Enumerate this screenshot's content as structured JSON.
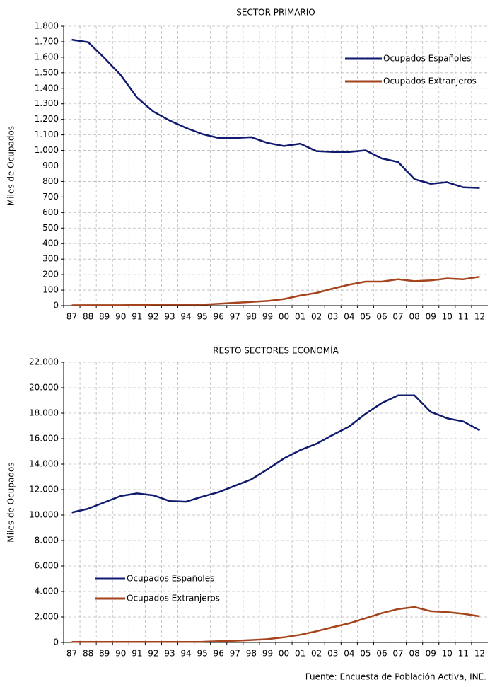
{
  "chart_data": [
    {
      "type": "line",
      "title": "SECTOR PRIMARIO",
      "y_label": "Miles de Ocupados",
      "categories": [
        "87",
        "88",
        "89",
        "90",
        "91",
        "92",
        "93",
        "94",
        "95",
        "96",
        "97",
        "98",
        "99",
        "00",
        "01",
        "02",
        "03",
        "04",
        "05",
        "06",
        "07",
        "08",
        "09",
        "10",
        "11",
        "12"
      ],
      "series": [
        {
          "name": "Ocupados Españoles",
          "color": "#101a6e",
          "values": [
            1713,
            1697,
            1595,
            1485,
            1340,
            1250,
            1192,
            1145,
            1105,
            1080,
            1080,
            1085,
            1048,
            1028,
            1043,
            995,
            990,
            990,
            1000,
            948,
            925,
            815,
            785,
            795,
            762,
            758
          ]
        },
        {
          "name": "Ocupados Extranjeros",
          "color": "#a4431c",
          "values": [
            2,
            3,
            3,
            3,
            4,
            7,
            7,
            7,
            7,
            12,
            18,
            24,
            30,
            42,
            65,
            82,
            110,
            135,
            155,
            155,
            170,
            158,
            163,
            175,
            170,
            186
          ]
        }
      ],
      "ylim": [
        0,
        1800
      ],
      "yticks": [
        0,
        100,
        200,
        300,
        400,
        500,
        600,
        700,
        800,
        900,
        {
          "value": 1000,
          "label": "1.000"
        },
        {
          "value": 1100,
          "label": "1.100"
        },
        {
          "value": 1200,
          "label": "1.200"
        },
        {
          "value": 1300,
          "label": "1.300"
        },
        {
          "value": 1400,
          "label": "1.400"
        },
        {
          "value": 1500,
          "label": "1.500"
        },
        {
          "value": 1600,
          "label": "1.600"
        },
        {
          "value": 1700,
          "label": "1.700"
        },
        {
          "value": 1800,
          "label": "1.800"
        }
      ],
      "grid": true,
      "legend": "upper right"
    },
    {
      "type": "line",
      "title": "RESTO SECTORES ECONOMÍA",
      "y_label": "Miles de Ocupados",
      "categories": [
        "87",
        "88",
        "89",
        "90",
        "91",
        "92",
        "93",
        "94",
        "95",
        "96",
        "97",
        "98",
        "99",
        "00",
        "01",
        "02",
        "03",
        "04",
        "05",
        "06",
        "07",
        "08",
        "09",
        "10",
        "11",
        "12"
      ],
      "series": [
        {
          "name": "Ocupados Españoles",
          "color": "#101a6e",
          "values": [
            10200,
            10500,
            11000,
            11500,
            11700,
            11550,
            11100,
            11050,
            11450,
            11800,
            12300,
            12800,
            13600,
            14450,
            15100,
            15600,
            16300,
            16950,
            17950,
            18800,
            19400,
            19400,
            18100,
            17600,
            17350,
            16650
          ]
        },
        {
          "name": "Ocupados Extranjeros",
          "color": "#a4431c",
          "values": [
            40,
            40,
            40,
            40,
            40,
            40,
            40,
            40,
            50,
            100,
            130,
            190,
            260,
            400,
            600,
            880,
            1200,
            1500,
            1900,
            2300,
            2620,
            2780,
            2450,
            2380,
            2250,
            2050
          ]
        }
      ],
      "ylim": [
        0,
        22000
      ],
      "yticks": [
        0,
        {
          "value": 2000,
          "label": "2.000"
        },
        {
          "value": 4000,
          "label": "4.000"
        },
        {
          "value": 6000,
          "label": "6.000"
        },
        {
          "value": 8000,
          "label": "8.000"
        },
        {
          "value": 10000,
          "label": "10.000"
        },
        {
          "value": 12000,
          "label": "12.000"
        },
        {
          "value": 14000,
          "label": "14.000"
        },
        {
          "value": 16000,
          "label": "16.000"
        },
        {
          "value": 18000,
          "label": "18.000"
        },
        {
          "value": 20000,
          "label": "20.000"
        },
        {
          "value": 22000,
          "label": "22.000"
        }
      ],
      "grid": true,
      "legend": "lower left"
    }
  ],
  "source": "Fuente: Encuesta de Población Activa, INE."
}
